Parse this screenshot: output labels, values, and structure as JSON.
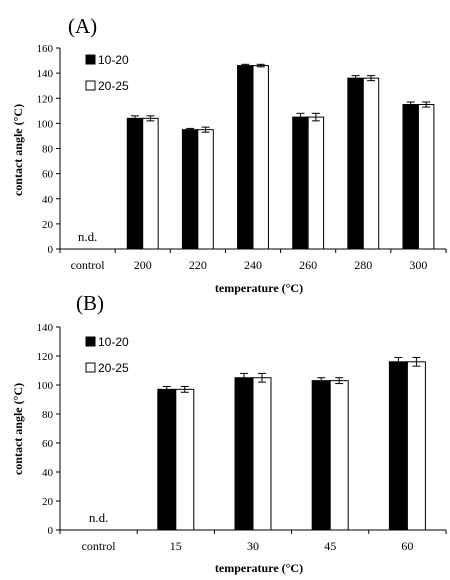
{
  "chart_data": [
    {
      "type": "bar",
      "panel_label": "(A)",
      "categories": [
        "control",
        "200",
        "220",
        "240",
        "260",
        "280",
        "300"
      ],
      "series": [
        {
          "name": "10-20",
          "color": "#000000",
          "values": [
            null,
            104,
            95,
            146,
            105,
            136,
            115
          ],
          "errors": [
            null,
            2,
            1,
            1,
            3,
            2,
            2
          ]
        },
        {
          "name": "20-25",
          "color": "#ffffff",
          "values": [
            null,
            104,
            95,
            146,
            105,
            136,
            115
          ],
          "errors": [
            null,
            2,
            2,
            1,
            3,
            2,
            2
          ]
        }
      ],
      "annotations": [
        {
          "category": "control",
          "text": "n.d."
        }
      ],
      "xlabel": "temperature (°C)",
      "ylabel": "contact angle (°C)",
      "ylim": [
        0,
        160
      ],
      "yticks": [
        0,
        20,
        40,
        60,
        80,
        100,
        120,
        140,
        160
      ],
      "legend_position": "top-left",
      "grid": false
    },
    {
      "type": "bar",
      "panel_label": "(B)",
      "categories": [
        "control",
        "15",
        "30",
        "45",
        "60"
      ],
      "series": [
        {
          "name": "10-20",
          "color": "#000000",
          "values": [
            null,
            97,
            105,
            103,
            116
          ],
          "errors": [
            null,
            2,
            3,
            2,
            3
          ]
        },
        {
          "name": "20-25",
          "color": "#ffffff",
          "values": [
            null,
            97,
            105,
            103,
            116
          ],
          "errors": [
            null,
            2,
            3,
            2,
            3
          ]
        }
      ],
      "annotations": [
        {
          "category": "control",
          "text": "n.d."
        }
      ],
      "xlabel": "temperature (°C)",
      "ylabel": "contact angle (°C)",
      "ylim": [
        0,
        140
      ],
      "yticks": [
        0,
        20,
        40,
        60,
        80,
        100,
        120,
        140
      ],
      "legend_position": "top-left",
      "grid": false
    }
  ]
}
